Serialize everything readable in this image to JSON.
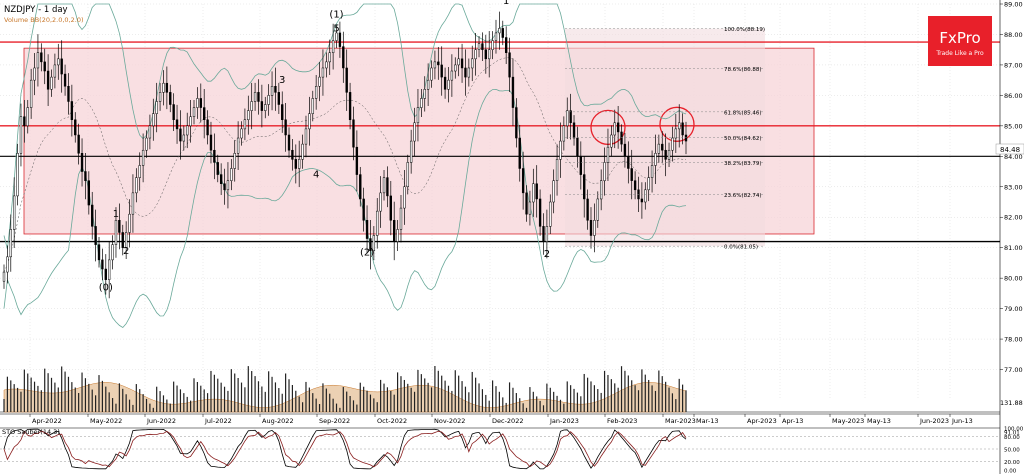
{
  "header": {
    "symbol_label": "NZDJPY - 1 day",
    "volume_label": "Volume BB(20,2.0,0,2.0)"
  },
  "brand": {
    "name": "FxPro",
    "tagline": "Trade Like a Pro",
    "color": "#e8202a"
  },
  "colors": {
    "zone_fill": "#f7d4d8",
    "zone_stroke": "#d9272e",
    "resistance_red": "#e8202a",
    "support_black": "#000000",
    "fib_fill": "#f2dcdf",
    "bb_band": "#6aa99a",
    "stoch_k": "#000000",
    "stoch_d": "#8a1f1f",
    "volume_bar": "#222222",
    "volume_area": "#e9c9a6"
  },
  "chart_data": {
    "type": "candlestick",
    "symbol": "NZDJPY",
    "timeframe": "1 day",
    "ylim": [
      76.0,
      89.0
    ],
    "y_ticks": [
      77.0,
      78.0,
      79.0,
      80.0,
      81.0,
      82.0,
      83.0,
      84.0,
      85.0,
      86.0,
      87.0,
      88.0,
      89.0
    ],
    "x_labels": [
      "Apr-2022",
      "May-2022",
      "Jun-2022",
      "Jul-2022",
      "Aug-2022",
      "Sep-2022",
      "Oct-2022",
      "Nov-2022",
      "Dec-2022",
      "Jan-2023",
      "Feb-2023",
      "Mar-2023",
      "Mar-13",
      "Apr-2023",
      "Apr-13",
      "May-2023",
      "May-13",
      "Jun-2023",
      "Jun-13"
    ],
    "last_price": "84.48",
    "volume_label_value": "131.88",
    "grid": true,
    "levels": {
      "resistance": 85.0,
      "upper_red": 87.75,
      "support_mid": 84.0,
      "support_low": 81.2
    },
    "range_zone": {
      "top": 87.55,
      "bottom": 81.45
    },
    "fib_levels": [
      {
        "label": "100.0%(88.19)",
        "value": 88.19
      },
      {
        "label": "78.6%(86.88)",
        "value": 86.88
      },
      {
        "label": "61.8%(85.46)",
        "value": 85.46
      },
      {
        "label": "50.0%(84.62)",
        "value": 84.62
      },
      {
        "label": "38.2%(83.79)",
        "value": 83.79
      },
      {
        "label": "23.6%(82.74)",
        "value": 82.74
      },
      {
        "label": "0.0%(81.05)",
        "value": 81.05
      }
    ],
    "wave_labels": [
      {
        "text": "(0)",
        "date": 30,
        "price": 79.6
      },
      {
        "text": "1",
        "date": 33,
        "price": 82.0
      },
      {
        "text": "2",
        "date": 36,
        "price": 80.8
      },
      {
        "text": "3",
        "date": 82,
        "price": 86.4
      },
      {
        "text": "4",
        "date": 92,
        "price": 83.3
      },
      {
        "text": "(1)",
        "date": 98,
        "price": 88.55
      },
      {
        "text": "5",
        "date": 98,
        "price": 88.1
      },
      {
        "text": "(2)",
        "date": 107,
        "price": 80.75
      },
      {
        "text": "1",
        "date": 148,
        "price": 89.0
      },
      {
        "text": "2",
        "date": 160,
        "price": 80.7
      }
    ],
    "stochastic": {
      "label": "STO Sauber(14,3)",
      "levels": [
        "100.00",
        "91.01",
        "80.00",
        "50.00",
        "20.00",
        "0.00"
      ]
    },
    "series": [
      {
        "name": "Close",
        "values": [
          80.2,
          80.7,
          81.6,
          82.7,
          84.1,
          85.3,
          85.0,
          85.6,
          86.5,
          86.9,
          87.4,
          87.1,
          86.8,
          86.2,
          86.6,
          87.0,
          87.2,
          86.7,
          86.3,
          85.8,
          85.2,
          84.7,
          84.1,
          83.5,
          83.2,
          82.4,
          81.7,
          81.1,
          80.6,
          80.3,
          79.95,
          80.6,
          81.1,
          81.9,
          81.5,
          81.0,
          81.5,
          82.1,
          82.8,
          83.3,
          83.7,
          84.2,
          84.6,
          85.0,
          85.4,
          85.8,
          86.1,
          86.4,
          86.1,
          85.7,
          85.2,
          84.9,
          84.5,
          84.7,
          85.0,
          85.3,
          85.6,
          85.9,
          85.6,
          85.2,
          84.7,
          84.2,
          83.8,
          83.4,
          83.1,
          82.9,
          83.2,
          83.6,
          84.1,
          84.6,
          84.9,
          85.2,
          85.5,
          85.8,
          86.1,
          85.8,
          85.5,
          85.7,
          86.0,
          86.3,
          86.1,
          85.7,
          85.2,
          84.7,
          84.2,
          83.9,
          83.6,
          83.9,
          84.4,
          84.9,
          85.4,
          85.9,
          86.3,
          86.6,
          86.9,
          87.1,
          87.4,
          87.8,
          88.05,
          87.6,
          86.9,
          86.1,
          85.2,
          84.3,
          83.4,
          82.6,
          81.9,
          81.3,
          80.9,
          81.4,
          82.2,
          82.8,
          83.3,
          82.7,
          81.9,
          81.2,
          81.6,
          82.3,
          83.0,
          83.8,
          84.5,
          85.1,
          85.6,
          85.9,
          86.2,
          86.5,
          86.9,
          87.1,
          87.0,
          86.6,
          86.2,
          86.5,
          86.8,
          87.0,
          87.2,
          86.9,
          86.6,
          86.9,
          87.2,
          87.5,
          87.7,
          87.5,
          87.2,
          87.5,
          87.8,
          88.05,
          88.2,
          87.9,
          87.4,
          86.6,
          85.6,
          84.6,
          83.6,
          82.8,
          82.1,
          82.5,
          83.1,
          82.6,
          81.7,
          81.2,
          81.7,
          82.5,
          83.2,
          83.9,
          84.5,
          85.0,
          85.5,
          85.1,
          84.6,
          84.0,
          83.4,
          82.6,
          81.9,
          81.4,
          81.9,
          82.6,
          83.2,
          83.8,
          84.3,
          84.7,
          85.1,
          84.8,
          84.4,
          84.0,
          83.6,
          83.2,
          82.9,
          82.6,
          82.5,
          82.9,
          83.3,
          83.7,
          84.1,
          84.4,
          84.2,
          83.9,
          84.2,
          84.6,
          84.9,
          85.1,
          84.7,
          84.5
        ]
      }
    ]
  },
  "watermark_hint": "iii"
}
